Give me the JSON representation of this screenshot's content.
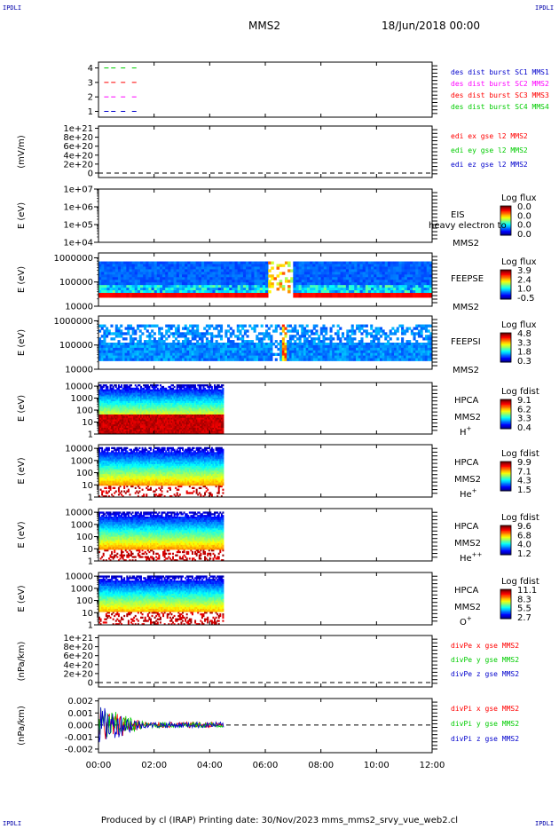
{
  "corners": {
    "tl": "IPDLI",
    "tr": "IPDLI",
    "bl": "IPDLI",
    "br": "IPDLI"
  },
  "header": {
    "spacecraft": "MMS2",
    "date": "18/Jun/2018 00:00"
  },
  "footer": {
    "text": "Produced by cl (IRAP)   Printing date: 30/Nov/2023   mms_mms2_srvy_vue_web2.cl"
  },
  "colors": {
    "red": "#ff0000",
    "green": "#00cc00",
    "blue": "#0000cc",
    "magenta": "#ff00ff"
  },
  "chart_data": {
    "type": "stacked-timeseries",
    "xaxis": {
      "range_hours": [
        0,
        12
      ],
      "ticks": [
        0,
        2,
        4,
        6,
        8,
        10,
        12
      ],
      "tick_labels": [
        "00:00",
        "02:00",
        "04:00",
        "06:00",
        "08:00",
        "10:00",
        "12:00"
      ]
    },
    "panels": [
      {
        "id": "burst",
        "kind": "lines",
        "yticks": [
          1,
          2,
          3,
          4
        ],
        "ytick_labels": [
          "1",
          "2",
          "3",
          "4"
        ],
        "ylim": [
          0.6,
          4.4
        ],
        "ylabel": "",
        "legend": [
          {
            "text": "des dist burst SC1 MMS1",
            "color": "#0000cc"
          },
          {
            "text": "des dist burst SC2 MMS2",
            "color": "#ff00ff"
          },
          {
            "text": "des dist burst SC3 MMS3",
            "color": "#ff0000"
          },
          {
            "text": "des dist burst SC4 MMS4",
            "color": "#00cc00"
          }
        ],
        "series": [
          {
            "y": 4,
            "color": "#00cc00",
            "x": [
              0.05,
              0.3,
              0.55,
              0.9,
              1.3
            ]
          },
          {
            "y": 3,
            "color": "#ff0000",
            "x": [
              0.05,
              0.3,
              0.55,
              0.9,
              1.3
            ]
          },
          {
            "y": 2,
            "color": "#ff00ff",
            "x": [
              0.05,
              0.3,
              0.55,
              0.9,
              1.3
            ]
          },
          {
            "y": 1,
            "color": "#0000cc",
            "x": [
              0.05,
              0.3,
              0.55,
              0.9,
              1.3
            ]
          }
        ]
      },
      {
        "id": "edi",
        "kind": "empty",
        "ylabel": "(mV/m)",
        "ytick_labels": [
          "1e+21",
          "8e+20",
          "6e+20",
          "4e+20",
          "2e+20",
          "0"
        ],
        "yticks": [
          1e+21,
          8e+20,
          6e+20,
          4e+20,
          2e+20,
          0
        ],
        "ylim": [
          -1e+20,
          1.05e+21
        ],
        "zero_dashed": true,
        "legend": [
          {
            "text": "edi ex gse l2 MMS2",
            "color": "#ff0000"
          },
          {
            "text": "edi ey gse l2 MMS2",
            "color": "#00cc00"
          },
          {
            "text": "edi ez gse l2 MMS2",
            "color": "#0000cc"
          }
        ]
      },
      {
        "id": "eis",
        "kind": "empty-log",
        "ylabel": "E (eV)",
        "ytick_labels": [
          "1e+07",
          "1e+06",
          "1e+05",
          "1e+04"
        ],
        "log_range": [
          4,
          7
        ],
        "labels": [
          "EIS",
          "MMS2"
        ],
        "overlay": "heavy electron to",
        "colorbar": {
          "title": "Log flux",
          "ticks": [
            "0.0",
            "0.0",
            "0.0",
            "0.0"
          ]
        }
      },
      {
        "id": "feepse",
        "kind": "spectrogram",
        "ylabel": "E (eV)",
        "ytick_labels": [
          "1000000",
          "100000",
          "10000"
        ],
        "log_range": [
          4,
          6.2
        ],
        "labels": [
          "FEEPSE",
          "MMS2"
        ],
        "colorbar": {
          "title": "Log flux",
          "ticks": [
            "3.9",
            "2.4",
            "1.0",
            "-0.5"
          ]
        }
      },
      {
        "id": "feepsi",
        "kind": "spectrogram",
        "ylabel": "E (eV)",
        "ytick_labels": [
          "1000000",
          "100000",
          "10000"
        ],
        "log_range": [
          4,
          6.2
        ],
        "labels": [
          "FEEPSI",
          "MMS2"
        ],
        "colorbar": {
          "title": "Log flux",
          "ticks": [
            "4.8",
            "3.3",
            "1.8",
            "0.3"
          ]
        }
      },
      {
        "id": "hpca_h",
        "kind": "spectrogram",
        "ylabel": "E (eV)",
        "ytick_labels": [
          "10000",
          "1000",
          "100",
          "10",
          "1"
        ],
        "log_range": [
          0,
          4.3
        ],
        "labels": [
          "HPCA",
          "MMS2"
        ],
        "species": {
          "base": "H",
          "sup": "+"
        },
        "colorbar": {
          "title": "Log fdist",
          "ticks": [
            "9.1",
            "6.2",
            "3.3",
            "0.4"
          ]
        }
      },
      {
        "id": "hpca_he",
        "kind": "spectrogram",
        "ylabel": "E (eV)",
        "ytick_labels": [
          "10000",
          "1000",
          "100",
          "10",
          "1"
        ],
        "log_range": [
          0,
          4.3
        ],
        "labels": [
          "HPCA",
          "MMS2"
        ],
        "species": {
          "base": "He",
          "sup": "+"
        },
        "colorbar": {
          "title": "Log fdist",
          "ticks": [
            "9.9",
            "7.1",
            "4.3",
            "1.5"
          ]
        }
      },
      {
        "id": "hpca_he2",
        "kind": "spectrogram",
        "ylabel": "E (eV)",
        "ytick_labels": [
          "10000",
          "1000",
          "100",
          "10",
          "1"
        ],
        "log_range": [
          0,
          4.3
        ],
        "labels": [
          "HPCA",
          "MMS2"
        ],
        "species": {
          "base": "He",
          "sup": "++"
        },
        "colorbar": {
          "title": "Log fdist",
          "ticks": [
            "9.6",
            "6.8",
            "4.0",
            "1.2"
          ]
        }
      },
      {
        "id": "hpca_o",
        "kind": "spectrogram",
        "ylabel": "E (eV)",
        "ytick_labels": [
          "10000",
          "1000",
          "100",
          "10",
          "1"
        ],
        "log_range": [
          0,
          4.3
        ],
        "labels": [
          "HPCA",
          "MMS2"
        ],
        "species": {
          "base": "O",
          "sup": "+"
        },
        "colorbar": {
          "title": "Log fdist",
          "ticks": [
            "11.1",
            "8.3",
            "5.5",
            "2.7"
          ]
        }
      },
      {
        "id": "divpe",
        "kind": "empty",
        "ylabel": "(nPa/km)",
        "ytick_labels": [
          "1e+21",
          "8e+20",
          "6e+20",
          "4e+20",
          "2e+20",
          "0"
        ],
        "yticks": [
          1e+21,
          8e+20,
          6e+20,
          4e+20,
          2e+20,
          0
        ],
        "ylim": [
          -1e+20,
          1.05e+21
        ],
        "zero_dashed": true,
        "legend": [
          {
            "text": "divPe x gse MMS2",
            "color": "#ff0000"
          },
          {
            "text": "divPe y gse MMS2",
            "color": "#00cc00"
          },
          {
            "text": "divPe z gse MMS2",
            "color": "#0000cc"
          }
        ]
      },
      {
        "id": "divpi",
        "kind": "noise",
        "ylabel": "(nPa/km)",
        "ytick_labels": [
          "0.002",
          "0.001",
          "0.000",
          "-0.001",
          "-0.002"
        ],
        "yticks": [
          0.002,
          0.001,
          0,
          -0.001,
          -0.002
        ],
        "ylim": [
          -0.0023,
          0.0022
        ],
        "zero_dashed": true,
        "data_end_hours": 4.5,
        "legend": [
          {
            "text": "divPi x gse MMS2",
            "color": "#ff0000"
          },
          {
            "text": "divPi y gse MMS2",
            "color": "#00cc00"
          },
          {
            "text": "divPi z gse MMS2",
            "color": "#0000cc"
          }
        ]
      }
    ]
  }
}
